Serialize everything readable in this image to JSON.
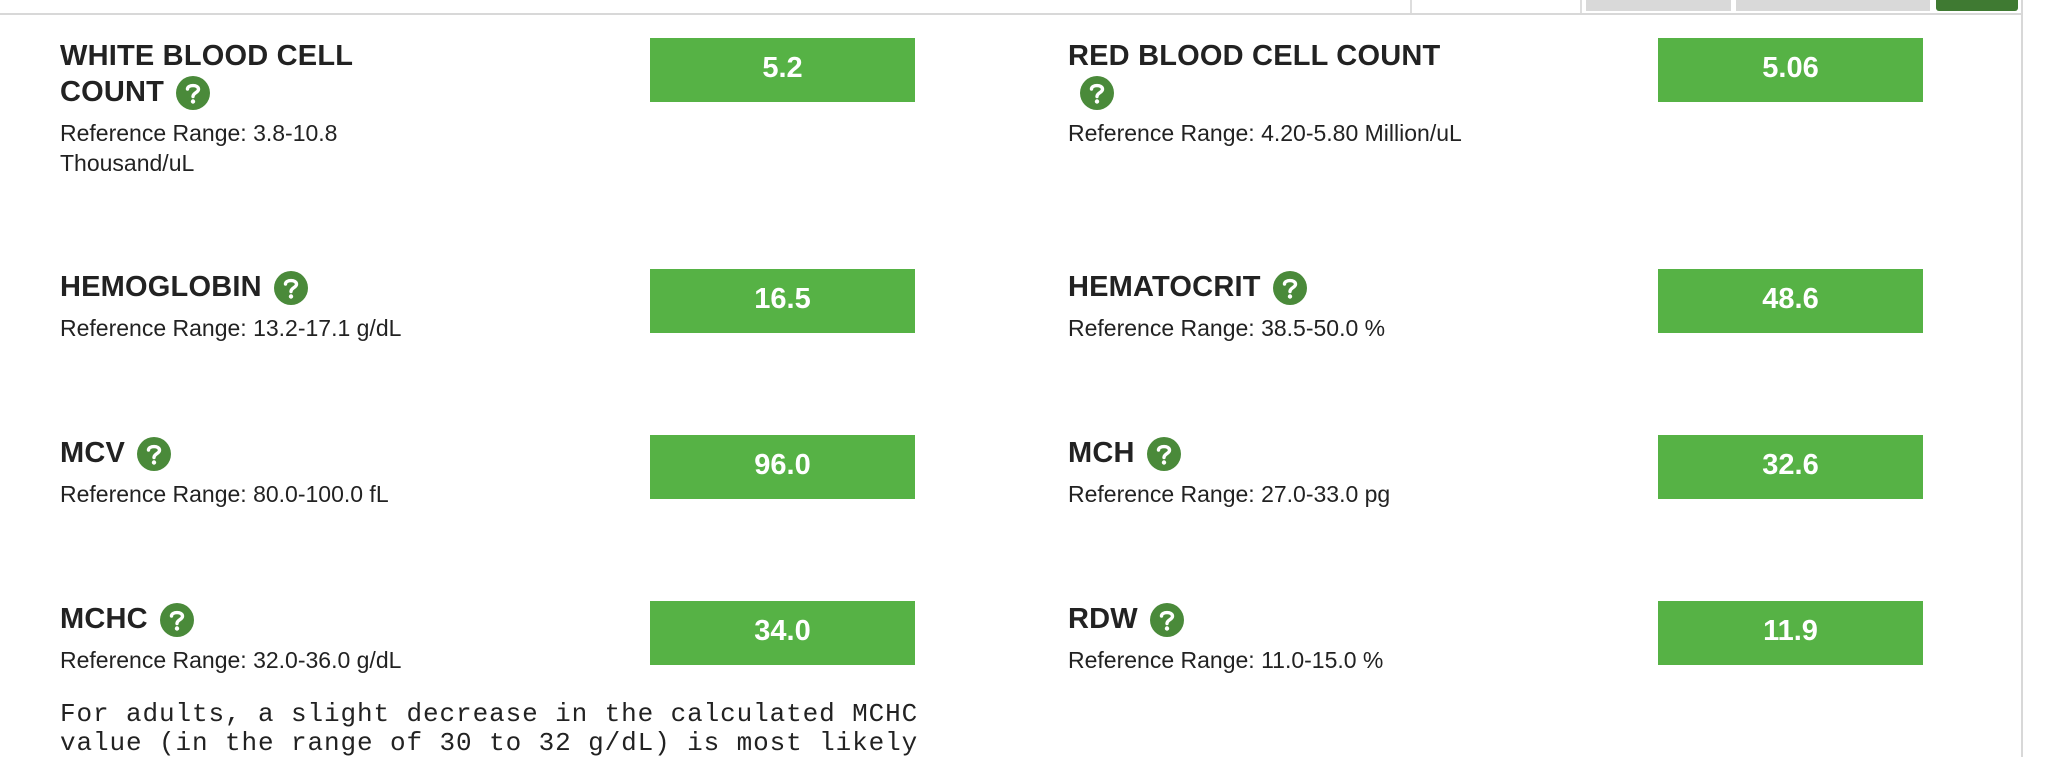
{
  "results": [
    {
      "name": "WHITE BLOOD CELL COUNT",
      "reference": "Reference Range: 3.8-10.8 Thousand/uL",
      "value": "5.2"
    },
    {
      "name": "RED BLOOD CELL COUNT",
      "reference": "Reference Range: 4.20-5.80 Million/uL",
      "value": "5.06"
    },
    {
      "name": "HEMOGLOBIN",
      "reference": "Reference Range: 13.2-17.1 g/dL",
      "value": "16.5"
    },
    {
      "name": "HEMATOCRIT",
      "reference": "Reference Range: 38.5-50.0 %",
      "value": "48.6"
    },
    {
      "name": "MCV",
      "reference": "Reference Range: 80.0-100.0 fL",
      "value": "96.0"
    },
    {
      "name": "MCH",
      "reference": "Reference Range: 27.0-33.0 pg",
      "value": "32.6"
    },
    {
      "name": "MCHC",
      "reference": "Reference Range: 32.0-36.0 g/dL",
      "value": "34.0"
    },
    {
      "name": "RDW",
      "reference": "Reference Range: 11.0-15.0 %",
      "value": "11.9"
    }
  ],
  "note": "For adults, a slight decrease in the calculated MCHC value (in the range of 30 to 32 g/dL) is most likely"
}
